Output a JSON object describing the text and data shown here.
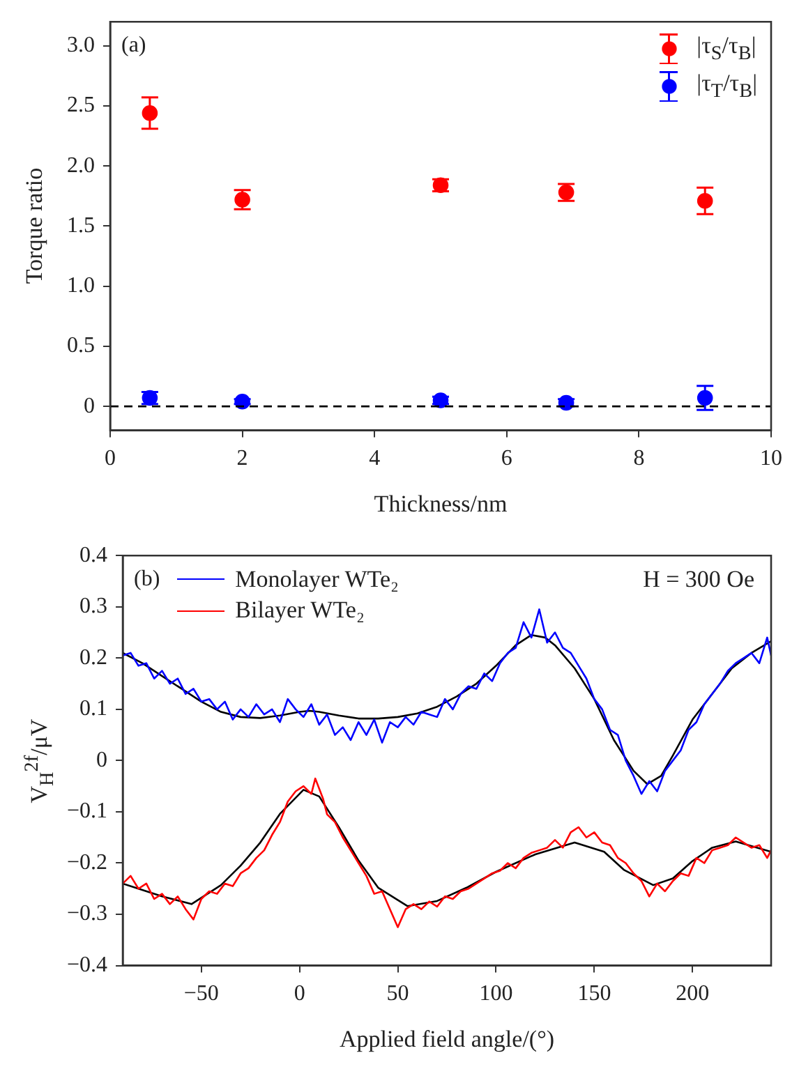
{
  "chart_data": [
    {
      "type": "scatter",
      "xlabel": "Thickness/nm",
      "ylabel": "Torque ratio",
      "annotations": [
        "(a)"
      ],
      "x": [
        0.6,
        2,
        5,
        6.9,
        9
      ],
      "series": [
        {
          "name": "|τ$_{S}$/τ$_{B}$|",
          "color": "#ff0000",
          "values": [
            2.44,
            1.72,
            1.84,
            1.78,
            1.71
          ],
          "errors": [
            0.13,
            0.08,
            0.05,
            0.07,
            0.11
          ]
        },
        {
          "name": "|τ$_{T}$/τ$_{B}$|",
          "color": "#0000ff",
          "values": [
            0.07,
            0.04,
            0.05,
            0.03,
            0.07
          ],
          "errors": [
            0.05,
            0.02,
            0.03,
            0.03,
            0.1
          ]
        }
      ],
      "xlim": [
        0,
        10
      ],
      "xticks": [
        0,
        2,
        4,
        6,
        8,
        10
      ],
      "ylim": [
        -0.2,
        3.2
      ],
      "yticks": [
        0,
        0.5,
        {
          "value": 1,
          "label": "1.0"
        },
        1.5,
        {
          "value": 2,
          "label": "2.0"
        },
        2.5,
        {
          "value": 3,
          "label": "3.0"
        }
      ],
      "ref_lines": [
        {
          "axis": "y",
          "value": 0,
          "color": "#000000",
          "line_style": "dashed"
        }
      ],
      "grid": false,
      "legend": "top right",
      "marker": "circle"
    },
    {
      "type": "line",
      "xlabel": "Applied field angle/(°)",
      "ylabel": "V$_{H}$$^{2f}$/μV",
      "annotations": [
        "(b)",
        "H = 300 Oe"
      ],
      "series": [
        {
          "name": "Monolayer WTe₂",
          "color": "#0000ff",
          "x": [
            -90,
            -86,
            -82,
            -78,
            -74,
            -70,
            -66,
            -62,
            -58,
            -54,
            -50,
            -46,
            -42,
            -38,
            -34,
            -30,
            -26,
            -22,
            -18,
            -14,
            -10,
            -6,
            -2,
            2,
            6,
            10,
            14,
            18,
            22,
            26,
            30,
            34,
            38,
            42,
            46,
            50,
            54,
            58,
            62,
            66,
            70,
            74,
            78,
            82,
            86,
            90,
            94,
            98,
            102,
            106,
            110,
            114,
            118,
            122,
            126,
            130,
            134,
            138,
            142,
            146,
            150,
            154,
            158,
            162,
            166,
            170,
            174,
            178,
            182,
            186,
            190,
            194,
            198,
            202,
            206,
            210,
            214,
            218,
            222,
            226,
            230,
            234,
            238,
            240
          ],
          "values": [
            0.205,
            0.21,
            0.185,
            0.19,
            0.16,
            0.175,
            0.15,
            0.16,
            0.13,
            0.14,
            0.115,
            0.12,
            0.1,
            0.115,
            0.08,
            0.1,
            0.085,
            0.11,
            0.09,
            0.1,
            0.075,
            0.12,
            0.1,
            0.085,
            0.11,
            0.07,
            0.09,
            0.05,
            0.065,
            0.04,
            0.075,
            0.05,
            0.08,
            0.035,
            0.075,
            0.065,
            0.085,
            0.07,
            0.095,
            0.09,
            0.085,
            0.12,
            0.1,
            0.13,
            0.145,
            0.14,
            0.17,
            0.155,
            0.19,
            0.21,
            0.22,
            0.27,
            0.24,
            0.295,
            0.23,
            0.25,
            0.22,
            0.21,
            0.185,
            0.16,
            0.12,
            0.1,
            0.06,
            0.05,
            0.0,
            -0.03,
            -0.065,
            -0.04,
            -0.06,
            -0.02,
            0.0,
            0.02,
            0.06,
            0.075,
            0.11,
            0.13,
            0.15,
            0.175,
            0.19,
            0.2,
            0.21,
            0.19,
            0.24,
            0.205
          ]
        },
        {
          "name": "Bilayer WTe₂",
          "color": "#ff0000",
          "x": [
            -90,
            -86,
            -82,
            -78,
            -74,
            -70,
            -66,
            -62,
            -58,
            -54,
            -50,
            -46,
            -42,
            -38,
            -34,
            -30,
            -26,
            -22,
            -18,
            -14,
            -10,
            -6,
            -2,
            2,
            6,
            8,
            12,
            14,
            18,
            22,
            26,
            30,
            34,
            38,
            42,
            46,
            50,
            54,
            58,
            62,
            66,
            70,
            74,
            78,
            82,
            86,
            90,
            94,
            98,
            102,
            106,
            110,
            114,
            118,
            122,
            126,
            130,
            134,
            138,
            142,
            146,
            150,
            154,
            158,
            162,
            166,
            170,
            174,
            178,
            182,
            186,
            190,
            194,
            198,
            202,
            206,
            210,
            214,
            218,
            222,
            226,
            230,
            234,
            238,
            240
          ],
          "values": [
            -0.24,
            -0.225,
            -0.25,
            -0.24,
            -0.27,
            -0.26,
            -0.28,
            -0.265,
            -0.29,
            -0.31,
            -0.27,
            -0.255,
            -0.26,
            -0.24,
            -0.245,
            -0.22,
            -0.21,
            -0.19,
            -0.175,
            -0.145,
            -0.12,
            -0.08,
            -0.06,
            -0.05,
            -0.065,
            -0.035,
            -0.075,
            -0.105,
            -0.12,
            -0.15,
            -0.175,
            -0.2,
            -0.225,
            -0.26,
            -0.255,
            -0.29,
            -0.325,
            -0.29,
            -0.28,
            -0.29,
            -0.275,
            -0.285,
            -0.265,
            -0.27,
            -0.255,
            -0.25,
            -0.24,
            -0.23,
            -0.22,
            -0.215,
            -0.2,
            -0.21,
            -0.19,
            -0.18,
            -0.175,
            -0.17,
            -0.155,
            -0.17,
            -0.14,
            -0.13,
            -0.15,
            -0.14,
            -0.16,
            -0.165,
            -0.19,
            -0.2,
            -0.22,
            -0.235,
            -0.265,
            -0.24,
            -0.255,
            -0.235,
            -0.22,
            -0.225,
            -0.19,
            -0.2,
            -0.175,
            -0.17,
            -0.165,
            -0.15,
            -0.16,
            -0.17,
            -0.165,
            -0.19,
            -0.175
          ]
        },
        {
          "color": "#000000",
          "x": [
            -90,
            -80,
            -70,
            -60,
            -50,
            -40,
            -30,
            -20,
            -10,
            0,
            5,
            10,
            20,
            30,
            40,
            50,
            60,
            70,
            80,
            90,
            100,
            110,
            118,
            125,
            130,
            140,
            150,
            160,
            170,
            177,
            184,
            190,
            200,
            210,
            220,
            230,
            240
          ],
          "values": [
            0.21,
            0.19,
            0.165,
            0.14,
            0.115,
            0.095,
            0.085,
            0.083,
            0.088,
            0.095,
            0.097,
            0.095,
            0.088,
            0.082,
            0.082,
            0.085,
            0.092,
            0.105,
            0.125,
            0.15,
            0.185,
            0.225,
            0.245,
            0.24,
            0.225,
            0.18,
            0.12,
            0.04,
            -0.02,
            -0.046,
            -0.03,
            0.01,
            0.08,
            0.13,
            0.18,
            0.21,
            0.233
          ]
        },
        {
          "color": "#000000",
          "x": [
            -90,
            -70,
            -55,
            -40,
            -30,
            -20,
            -10,
            2,
            10,
            20,
            30,
            40,
            55,
            70,
            85,
            100,
            120,
            140,
            155,
            165,
            180,
            190,
            200,
            210,
            222,
            240
          ],
          "values": [
            -0.24,
            -0.265,
            -0.28,
            -0.243,
            -0.205,
            -0.16,
            -0.104,
            -0.057,
            -0.07,
            -0.13,
            -0.195,
            -0.248,
            -0.284,
            -0.274,
            -0.248,
            -0.217,
            -0.183,
            -0.16,
            -0.178,
            -0.213,
            -0.243,
            -0.23,
            -0.196,
            -0.17,
            -0.158,
            -0.178
          ]
        }
      ],
      "xlim": [
        -90,
        240
      ],
      "xticks": [
        -50,
        0,
        50,
        100,
        150,
        200
      ],
      "ylim": [
        -0.4,
        0.4
      ],
      "yticks": [
        -0.4,
        -0.3,
        -0.2,
        -0.1,
        0,
        0.1,
        0.2,
        0.3,
        0.4
      ],
      "grid": false,
      "legend": "top left",
      "marker": "none",
      "line_style": "solid"
    }
  ]
}
